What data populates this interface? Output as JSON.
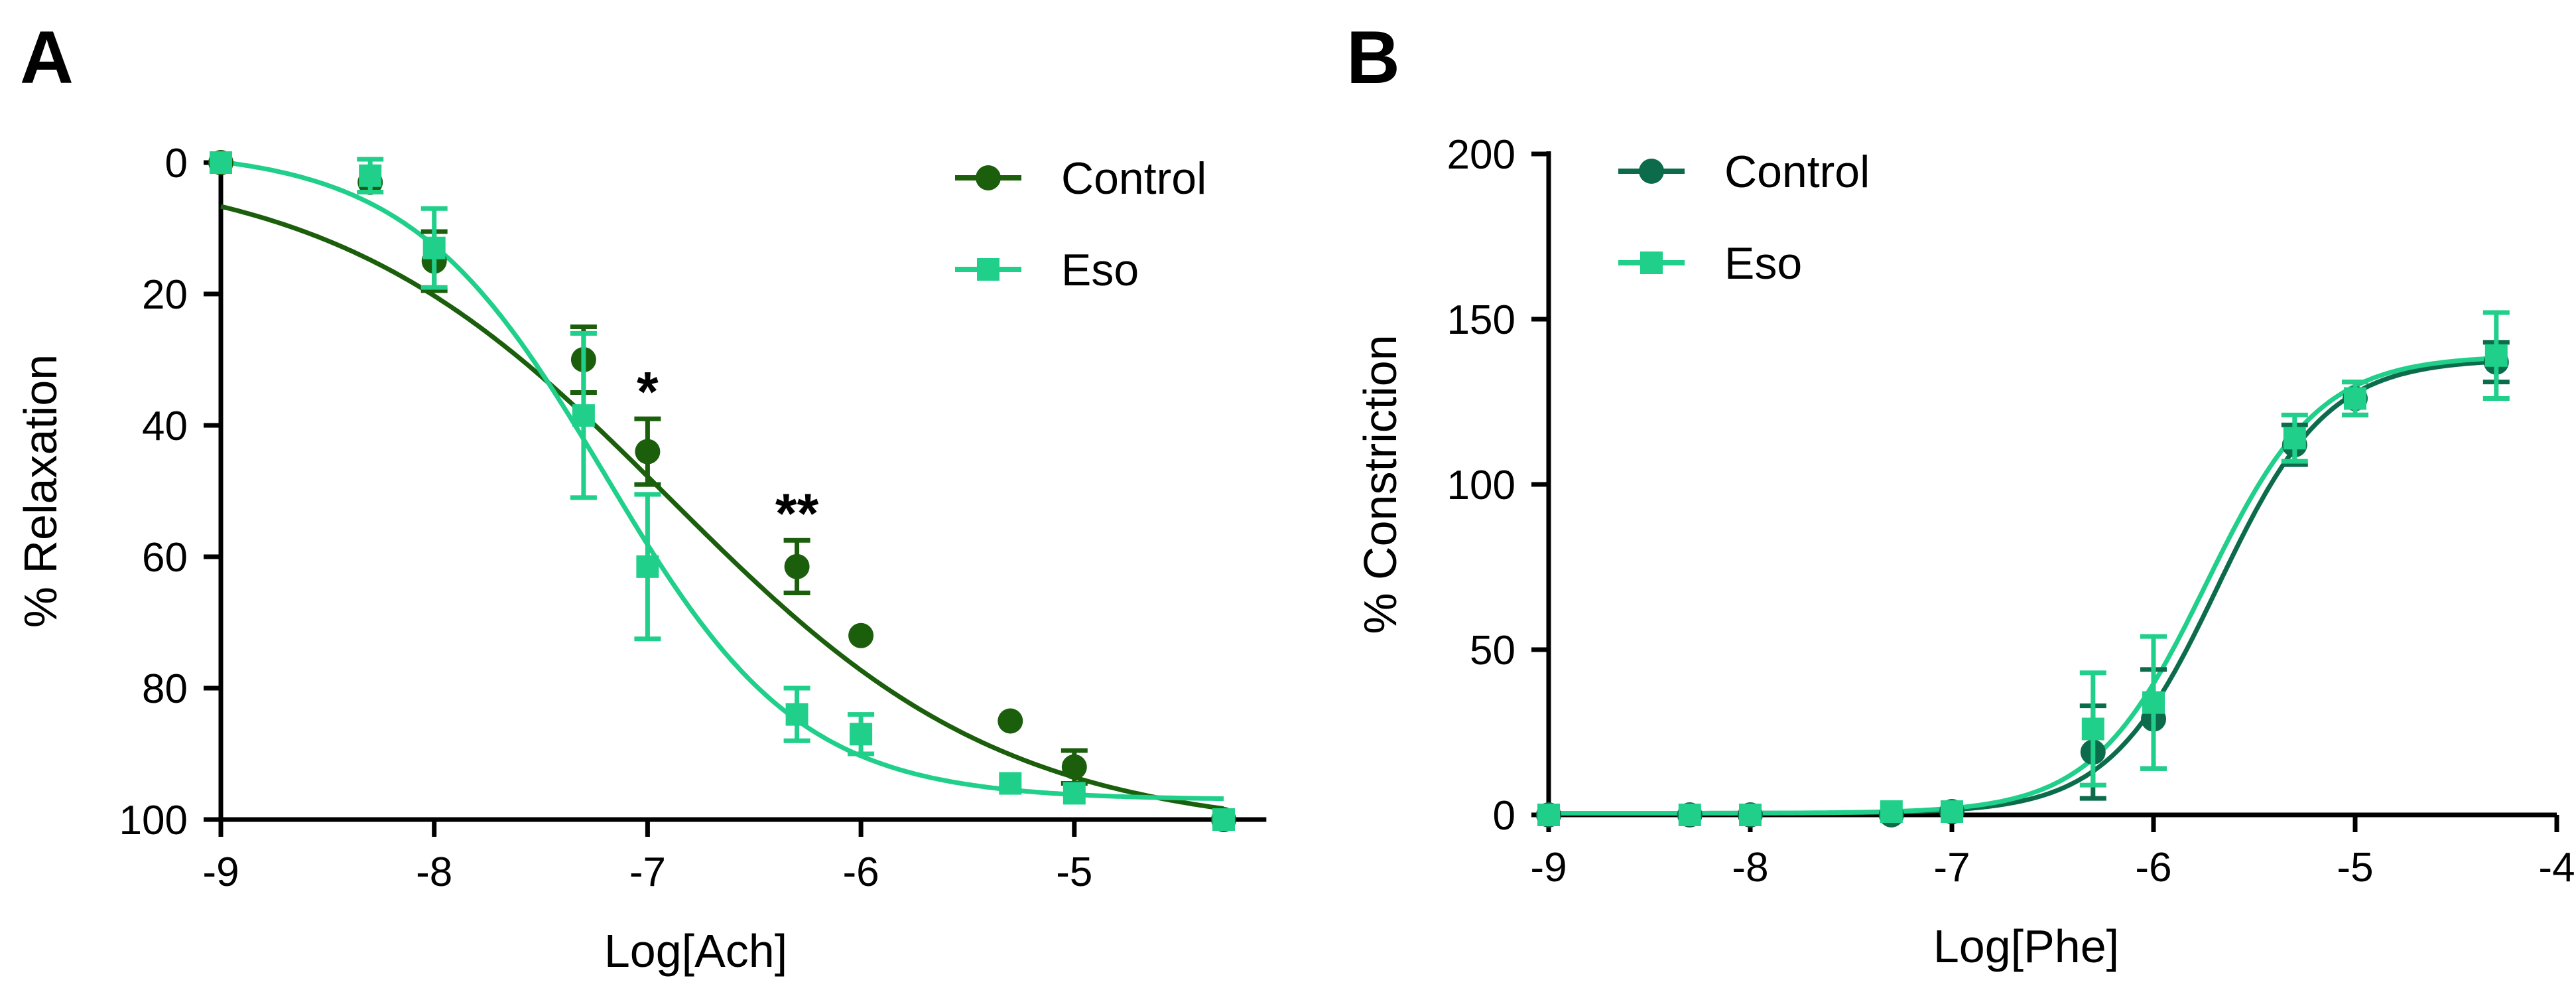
{
  "panel_labels": [
    "A",
    "B"
  ],
  "colors": {
    "control_a": "#1b5e0c",
    "eso": "#1fcf8a",
    "control_b": "#0b6b4b",
    "axis": "#000000"
  },
  "chart_data": [
    {
      "type": "line",
      "panel": "A",
      "xlabel": "Log[Ach]",
      "ylabel": "% Relaxation",
      "xlim": [
        -9,
        -4.3
      ],
      "ylim": [
        0,
        100
      ],
      "y_inverted": true,
      "x_ticks": [
        -9,
        -8,
        -7,
        -6,
        -5
      ],
      "x_tick_labels": [
        "-9",
        "-8",
        "-7",
        "-6",
        "-5"
      ],
      "y_ticks": [
        0,
        20,
        40,
        60,
        80,
        100
      ],
      "y_tick_labels": [
        "0",
        "20",
        "40",
        "60",
        "80",
        "100"
      ],
      "grid": false,
      "legend": "top-right",
      "series": [
        {
          "name": "Control",
          "marker": "circle",
          "color": "#1b5e0c",
          "x": [
            -9,
            -8.3,
            -8,
            -7.3,
            -7,
            -6.3,
            -6,
            -5.3,
            -5,
            -4.3
          ],
          "y": [
            0,
            3,
            15,
            30,
            44,
            61.5,
            72,
            85,
            92,
            100
          ],
          "err": [
            0,
            0,
            4.5,
            5,
            5,
            4,
            0,
            0,
            2.5,
            0
          ],
          "fit": {
            "bottom": 0,
            "top": 102,
            "log_ec50": -6.9,
            "hill": 0.55
          }
        },
        {
          "name": "Eso",
          "marker": "square",
          "color": "#1fcf8a",
          "x": [
            -9,
            -8.3,
            -8,
            -7.3,
            -7,
            -6.3,
            -6,
            -5.3,
            -5,
            -4.3
          ],
          "y": [
            0,
            2,
            13,
            38.5,
            61.5,
            84,
            87,
            94.5,
            96,
            100
          ],
          "err": [
            0,
            2.5,
            6,
            12.5,
            11,
            4,
            3,
            0,
            0,
            0
          ],
          "fit": {
            "bottom": -2,
            "top": 97,
            "log_ec50": -7.2,
            "hill": 0.95
          }
        }
      ],
      "annotations": [
        {
          "text": "*",
          "x": -7
        },
        {
          "text": "**",
          "x": -6.3
        }
      ]
    },
    {
      "type": "line",
      "panel": "B",
      "xlabel": "Log[Phe]",
      "ylabel": "% Constriction",
      "xlim": [
        -9,
        -4
      ],
      "ylim": [
        0,
        200
      ],
      "x_ticks": [
        -9,
        -8,
        -7,
        -6,
        -5,
        -4
      ],
      "x_tick_labels": [
        "-9",
        "-8",
        "-7",
        "-6",
        "-5",
        "-4"
      ],
      "y_ticks": [
        0,
        50,
        100,
        150,
        200
      ],
      "y_tick_labels": [
        "0",
        "50",
        "100",
        "150",
        "200"
      ],
      "grid": false,
      "legend": "top-left",
      "series": [
        {
          "name": "Control",
          "marker": "circle",
          "color": "#0b6b4b",
          "x": [
            -9,
            -8.3,
            -8,
            -7.3,
            -7,
            -6.3,
            -6,
            -5.3,
            -5,
            -4.3
          ],
          "y": [
            0,
            0,
            0,
            0,
            1,
            19,
            29,
            112,
            126,
            137
          ],
          "err": [
            0,
            0,
            0,
            0,
            0,
            14,
            15,
            6,
            5,
            6
          ],
          "fit": {
            "bottom": 0.5,
            "top": 138,
            "log_ec50": -5.68,
            "hill": 1.6
          }
        },
        {
          "name": "Eso",
          "marker": "square",
          "color": "#1fcf8a",
          "x": [
            -9,
            -8.3,
            -8,
            -7.3,
            -7,
            -6.3,
            -6,
            -5.3,
            -5,
            -4.3
          ],
          "y": [
            0,
            0,
            0,
            1,
            1,
            26,
            34,
            114,
            126,
            139
          ],
          "err": [
            0,
            0,
            0,
            0,
            0,
            17,
            20,
            7,
            5,
            13
          ],
          "fit": {
            "bottom": 0.5,
            "top": 139,
            "log_ec50": -5.74,
            "hill": 1.55
          }
        }
      ]
    }
  ]
}
